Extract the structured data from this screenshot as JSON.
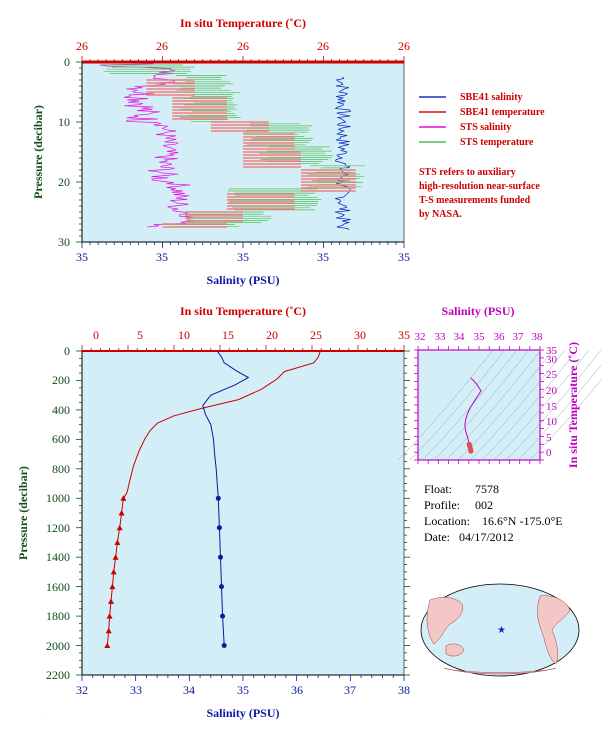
{
  "top_chart": {
    "top_axis_label": "In situ Temperature (˚C)",
    "bottom_axis_label": "Salinity (PSU)",
    "left_axis_label": "Pressure (decibar)",
    "top_ticks": [
      "26",
      "26",
      "26",
      "26",
      "26"
    ],
    "bottom_ticks": [
      "35",
      "35",
      "35",
      "35",
      "35"
    ],
    "left_ticks": [
      "0",
      "10",
      "20",
      "30"
    ],
    "legend": [
      {
        "label": "SBE41 salinity",
        "color": "#1030c8"
      },
      {
        "label": "SBE41 temperature",
        "color": "#d01010"
      },
      {
        "label": "STS salinity",
        "color": "#e010e0"
      },
      {
        "label": "STS temperature",
        "color": "#50c050"
      }
    ],
    "note_lines": [
      "STS refers to auxiliary",
      "high-resolution near-surface",
      "T-S measurements funded",
      "by NASA."
    ]
  },
  "bottom_chart": {
    "top_axis_label": "In situ Temperature (˚C)",
    "bottom_axis_label": "Salinity (PSU)",
    "left_axis_label": "Pressure (decibar)",
    "top_ticks": [
      "0",
      "5",
      "10",
      "15",
      "20",
      "25",
      "30",
      "35"
    ],
    "bottom_ticks": [
      "32",
      "33",
      "34",
      "35",
      "36",
      "37",
      "38"
    ],
    "left_ticks": [
      "0",
      "200",
      "400",
      "600",
      "800",
      "1000",
      "1200",
      "1400",
      "1600",
      "1800",
      "2000",
      "2200"
    ]
  },
  "ts_chart": {
    "top_axis_label": "Salinity (PSU)",
    "right_axis_label": "In situ Temperature (˚C)",
    "top_ticks": [
      "32",
      "33",
      "34",
      "35",
      "36",
      "37",
      "38"
    ],
    "right_ticks": [
      "0",
      "5",
      "10",
      "15",
      "20",
      "25",
      "30",
      "35"
    ]
  },
  "info": {
    "float_label": "Float:",
    "float_value": "7578",
    "profile_label": "Profile:",
    "profile_value": "002",
    "location_label": "Location:",
    "location_value": "16.6°N  -175.0°E",
    "date_label": "Date:",
    "date_value": "04/17/2012"
  },
  "colors": {
    "plot_bg": "#d4eef8",
    "temperature": "#cc0000",
    "salinity": "#0b1a9e",
    "sts_salinity": "#e010e0",
    "sts_temperature": "#50c050",
    "sbe_temperature_top": "#f08080",
    "ts_axis": "#c000c0"
  },
  "chart_data": [
    {
      "type": "line",
      "x_unit": "Salinity (PSU) / In situ Temperature (˚C)",
      "y_unit": "Pressure (decibar)",
      "ylim": [
        30,
        0
      ],
      "series": [
        {
          "name": "SBE41 salinity",
          "color": "#1030c8",
          "points": [
            [
              0.8,
              3
            ],
            [
              0.82,
              10
            ],
            [
              0.8,
              15
            ],
            [
              0.83,
              20
            ],
            [
              0.82,
              25
            ],
            [
              0.84,
              28
            ]
          ]
        },
        {
          "name": "STS salinity",
          "color": "#e010e0",
          "points": [
            [
              0.06,
              1
            ],
            [
              0.22,
              2
            ],
            [
              0.14,
              5
            ],
            [
              0.24,
              10
            ],
            [
              0.2,
              15
            ],
            [
              0.28,
              20
            ],
            [
              0.3,
              25
            ],
            [
              0.2,
              27
            ]
          ]
        },
        {
          "name": "STS temperature",
          "color": "#50c050",
          "points": [
            [
              0.3,
              3
            ],
            [
              0.45,
              5
            ],
            [
              0.5,
              10
            ],
            [
              0.6,
              12
            ],
            [
              0.7,
              15
            ],
            [
              0.85,
              18
            ],
            [
              0.6,
              22
            ],
            [
              0.4,
              25
            ],
            [
              0.3,
              27
            ]
          ]
        }
      ]
    },
    {
      "type": "line",
      "x_unit": "Salinity (PSU) / In situ Temperature (˚C)",
      "y_unit": "Pressure (decibar)",
      "ylim": [
        2200,
        0
      ],
      "series": [
        {
          "name": "In situ Temperature",
          "axis": "top",
          "xlim": [
            0,
            35
          ],
          "color": "#cc0000",
          "points": [
            [
              25.9,
              0
            ],
            [
              25.7,
              40
            ],
            [
              25.2,
              80
            ],
            [
              22,
              140
            ],
            [
              21.2,
              190
            ],
            [
              19.5,
              260
            ],
            [
              17,
              330
            ],
            [
              13,
              390
            ],
            [
              10,
              440
            ],
            [
              8.2,
              490
            ],
            [
              7.4,
              540
            ],
            [
              6.8,
              600
            ],
            [
              6.2,
              680
            ],
            [
              5.6,
              780
            ],
            [
              5.2,
              880
            ],
            [
              4.9,
              960
            ],
            [
              4.5,
              1000
            ],
            [
              4.3,
              1100
            ],
            [
              4.1,
              1200
            ],
            [
              3.85,
              1300
            ],
            [
              3.65,
              1400
            ],
            [
              3.45,
              1500
            ],
            [
              3.3,
              1600
            ],
            [
              3.15,
              1700
            ],
            [
              3.0,
              1800
            ],
            [
              2.9,
              1900
            ],
            [
              2.75,
              2000
            ]
          ]
        },
        {
          "name": "Salinity",
          "axis": "bottom",
          "xlim": [
            32,
            38
          ],
          "color": "#0b1a9e",
          "points": [
            [
              34.52,
              0
            ],
            [
              34.6,
              40
            ],
            [
              34.65,
              80
            ],
            [
              34.9,
              140
            ],
            [
              35.1,
              180
            ],
            [
              34.85,
              230
            ],
            [
              34.4,
              300
            ],
            [
              34.25,
              370
            ],
            [
              34.3,
              430
            ],
            [
              34.4,
              500
            ],
            [
              34.45,
              600
            ],
            [
              34.47,
              700
            ],
            [
              34.5,
              800
            ],
            [
              34.52,
              900
            ],
            [
              34.54,
              1000
            ],
            [
              34.56,
              1200
            ],
            [
              34.58,
              1400
            ],
            [
              34.6,
              1600
            ],
            [
              34.62,
              1800
            ],
            [
              34.65,
              2000
            ]
          ]
        }
      ]
    },
    {
      "type": "scatter",
      "xlabel": "Salinity (PSU)",
      "ylabel": "In situ Temperature (˚C)",
      "xlim": [
        32,
        38
      ],
      "ylim": [
        0,
        35
      ],
      "series": [
        {
          "name": "T-S",
          "color": "#e05050",
          "points": [
            [
              34.6,
              2.8
            ],
            [
              34.58,
              3.5
            ],
            [
              34.55,
              4.3
            ],
            [
              34.52,
              5
            ],
            [
              34.45,
              7
            ],
            [
              34.35,
              9
            ],
            [
              34.3,
              11
            ],
            [
              34.35,
              13
            ],
            [
              34.45,
              15
            ],
            [
              34.6,
              17
            ],
            [
              34.8,
              19
            ],
            [
              35.0,
              21
            ],
            [
              35.1,
              22
            ],
            [
              34.9,
              24
            ],
            [
              34.7,
              25.5
            ],
            [
              34.6,
              26
            ]
          ]
        }
      ]
    }
  ]
}
